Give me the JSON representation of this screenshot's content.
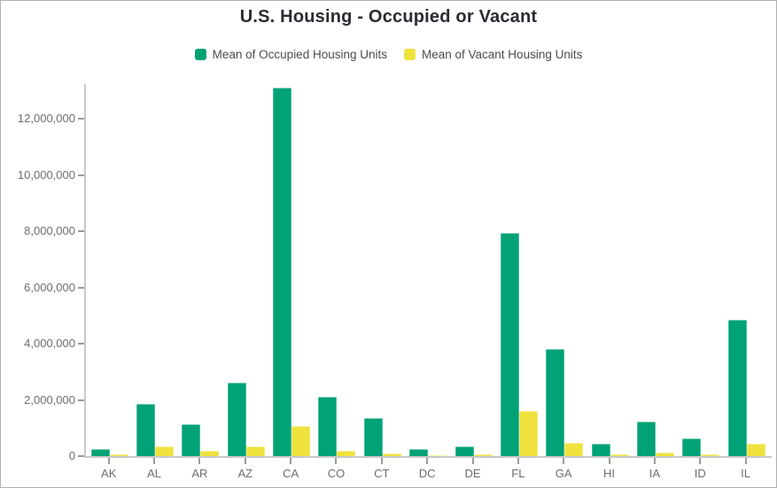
{
  "title": "U.S. Housing - Occupied or Vacant",
  "chart_data": {
    "type": "bar",
    "title": "U.S. Housing - Occupied or Vacant",
    "xlabel": "",
    "ylabel": "",
    "grid": false,
    "legend_position": "top",
    "categories": [
      "AK",
      "AL",
      "AR",
      "AZ",
      "CA",
      "CO",
      "CT",
      "DC",
      "DE",
      "FL",
      "GA",
      "HI",
      "IA",
      "ID",
      "IL"
    ],
    "series": [
      {
        "name": "Mean of Occupied Housing Units",
        "color": "#00a276",
        "values": [
          250000,
          1860000,
          1150000,
          2620000,
          13100000,
          2100000,
          1360000,
          260000,
          340000,
          7930000,
          3800000,
          440000,
          1230000,
          620000,
          4850000
        ]
      },
      {
        "name": "Mean of Vacant Housing Units",
        "color": "#efe23d",
        "values": [
          70000,
          350000,
          190000,
          360000,
          1060000,
          180000,
          100000,
          40000,
          50000,
          1600000,
          460000,
          60000,
          120000,
          60000,
          450000
        ]
      }
    ],
    "ylim": [
      0,
      13200000
    ],
    "y_ticks": [
      0,
      2000000,
      4000000,
      6000000,
      8000000,
      10000000,
      12000000
    ],
    "y_tick_labels": [
      "0",
      "2,000,000",
      "4,000,000",
      "6,000,000",
      "8,000,000",
      "10,000,000",
      "12,000,000"
    ]
  },
  "colors": {
    "occupied": "#00a276",
    "vacant": "#efe23d",
    "axis_line": "#c9c9c9",
    "tick": "#9b9b9b",
    "tick_label": "#6d6d6d",
    "title_text": "#2b2b33",
    "legend_text": "#4b4b52",
    "frame_border": "#b0b0b0"
  }
}
